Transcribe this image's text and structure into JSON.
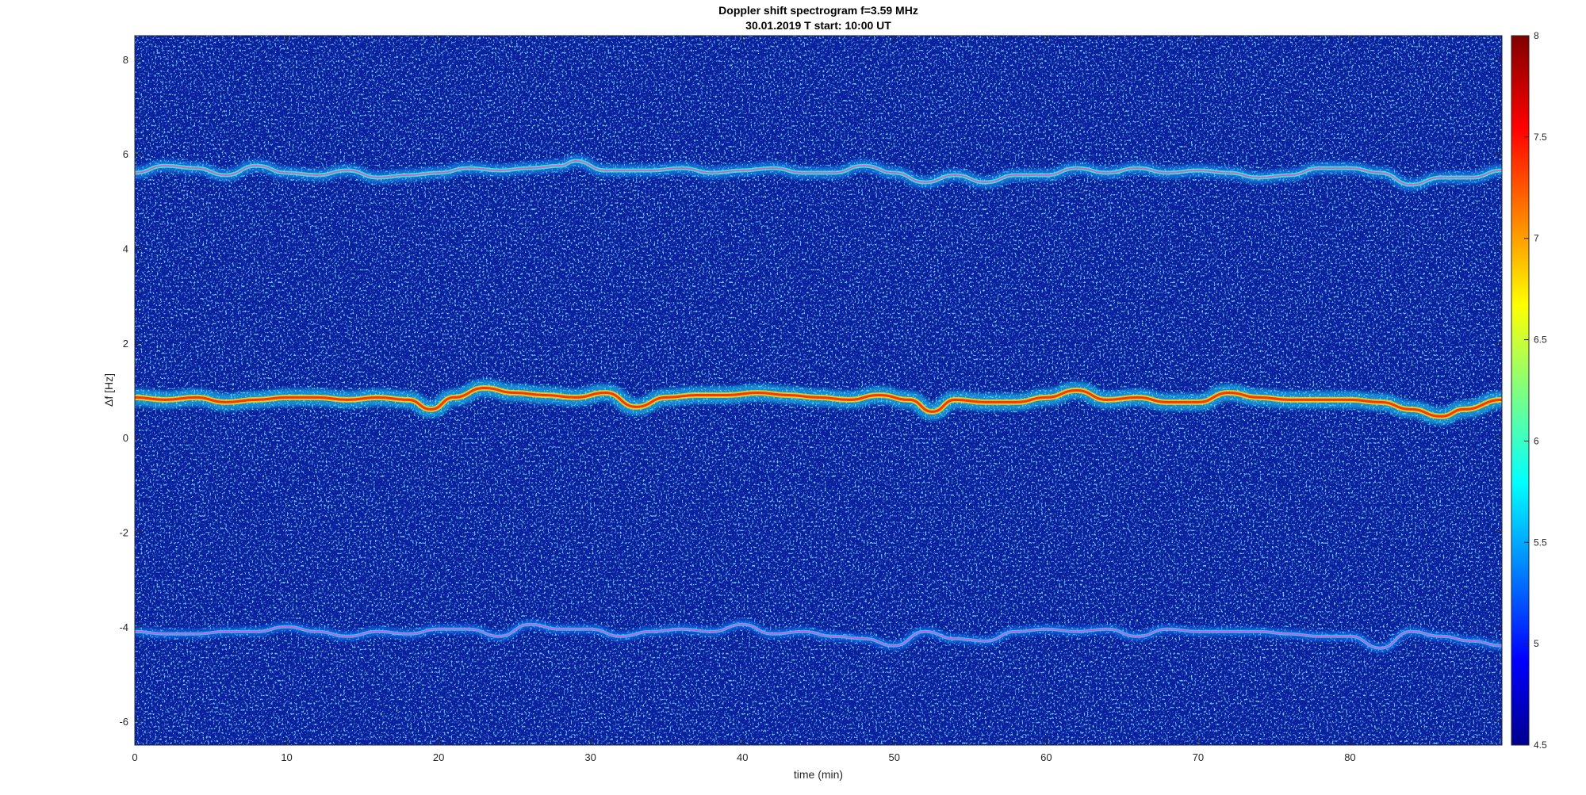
{
  "chart_data": {
    "type": "heatmap",
    "title": "Doppler shift spectrogram f=3.59 MHz",
    "subtitle": "30.01.2019   T start: 10:00 UT",
    "xlabel": "time (min)",
    "ylabel": "Δf [Hz]",
    "xlim": [
      0,
      90
    ],
    "ylim": [
      -6.5,
      8.5
    ],
    "x_ticks": [
      0,
      10,
      20,
      30,
      40,
      50,
      60,
      70,
      80
    ],
    "y_ticks": [
      -6,
      -4,
      -2,
      0,
      2,
      4,
      6,
      8
    ],
    "colorbar": {
      "range": [
        4.5,
        8
      ],
      "ticks": [
        4.5,
        5,
        5.5,
        6,
        6.5,
        7,
        7.5,
        8
      ],
      "colormap": "jet"
    },
    "background_color": "#0a1f9e",
    "traces": [
      {
        "approx_level_hz": 5.6,
        "intensity": "medium",
        "x": [
          0,
          2,
          4,
          6,
          8,
          10,
          12,
          14,
          16,
          18,
          20,
          22,
          24,
          26,
          28,
          29,
          31,
          34,
          36,
          38,
          40,
          42,
          44,
          46,
          48,
          50,
          52,
          54,
          56,
          58,
          60,
          62,
          64,
          66,
          68,
          70,
          72,
          74,
          76,
          78,
          80,
          82,
          84,
          86,
          88,
          90
        ],
        "y": [
          5.6,
          5.75,
          5.7,
          5.55,
          5.75,
          5.6,
          5.55,
          5.65,
          5.5,
          5.55,
          5.6,
          5.7,
          5.65,
          5.7,
          5.75,
          5.85,
          5.65,
          5.65,
          5.7,
          5.6,
          5.65,
          5.7,
          5.6,
          5.6,
          5.75,
          5.6,
          5.4,
          5.55,
          5.4,
          5.55,
          5.55,
          5.7,
          5.6,
          5.7,
          5.6,
          5.65,
          5.6,
          5.5,
          5.55,
          5.7,
          5.7,
          5.6,
          5.35,
          5.5,
          5.5,
          5.65
        ]
      },
      {
        "approx_level_hz": 0.85,
        "intensity": "high",
        "x": [
          0,
          2,
          4,
          6,
          8,
          10,
          12,
          14,
          16,
          18,
          19.5,
          21,
          23,
          25,
          27,
          29,
          31,
          33,
          35,
          37,
          39,
          41,
          43,
          45,
          47,
          49,
          51,
          52.5,
          54,
          56,
          58,
          60,
          62,
          64,
          66,
          68,
          70,
          72,
          74,
          76,
          78,
          80,
          82,
          84,
          86,
          87.5,
          90
        ],
        "y": [
          0.85,
          0.8,
          0.85,
          0.75,
          0.8,
          0.85,
          0.85,
          0.8,
          0.85,
          0.8,
          0.6,
          0.85,
          1.05,
          0.95,
          0.9,
          0.85,
          0.95,
          0.65,
          0.85,
          0.9,
          0.9,
          0.95,
          0.9,
          0.85,
          0.8,
          0.9,
          0.8,
          0.55,
          0.8,
          0.75,
          0.75,
          0.85,
          1.0,
          0.8,
          0.85,
          0.75,
          0.75,
          0.95,
          0.85,
          0.8,
          0.8,
          0.8,
          0.75,
          0.6,
          0.45,
          0.6,
          0.8
        ]
      },
      {
        "approx_level_hz": -4.1,
        "intensity": "low",
        "x": [
          0,
          2,
          4,
          6,
          8,
          10,
          12,
          14,
          16,
          18,
          20,
          22,
          24,
          26,
          28,
          30,
          32,
          34,
          36,
          38,
          40,
          42,
          44,
          46,
          48,
          50,
          52,
          54,
          56,
          58,
          60,
          62,
          64,
          66,
          68,
          70,
          72,
          74,
          76,
          78,
          80,
          82,
          84,
          86,
          88,
          90
        ],
        "y": [
          -4.1,
          -4.15,
          -4.15,
          -4.1,
          -4.1,
          -4.0,
          -4.1,
          -4.2,
          -4.1,
          -4.15,
          -4.05,
          -4.05,
          -4.2,
          -3.95,
          -4.05,
          -4.05,
          -4.2,
          -4.1,
          -4.05,
          -4.1,
          -3.95,
          -4.15,
          -4.1,
          -4.2,
          -4.25,
          -4.4,
          -4.1,
          -4.25,
          -4.3,
          -4.1,
          -4.05,
          -4.1,
          -4.05,
          -4.2,
          -4.05,
          -4.1,
          -4.1,
          -4.1,
          -4.15,
          -4.2,
          -4.2,
          -4.45,
          -4.1,
          -4.2,
          -4.3,
          -4.4
        ]
      }
    ]
  }
}
